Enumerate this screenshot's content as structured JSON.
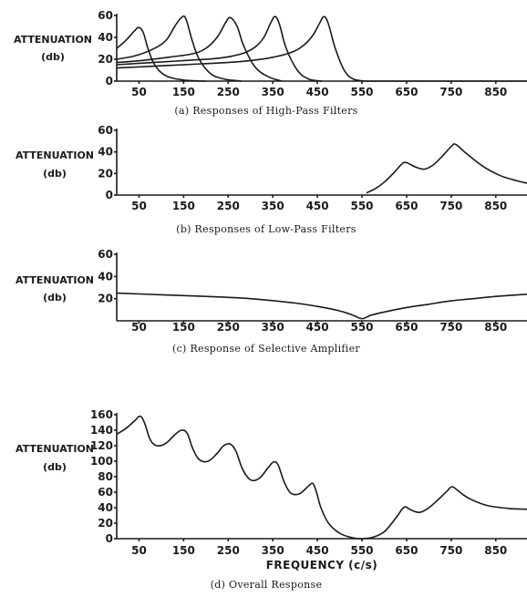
{
  "chart_data": [
    {
      "type": "line",
      "caption": "(a) Responses of High-Pass Filters",
      "ylabel": [
        "ATTENUATION",
        "(db)"
      ],
      "xticks": [
        50,
        150,
        250,
        350,
        450,
        550,
        650,
        750,
        850
      ],
      "xtick_labels": [
        "50",
        "150",
        "250",
        "350",
        "450",
        "550",
        "650",
        "750",
        "850"
      ],
      "yticks": [
        0,
        20,
        40,
        60
      ],
      "xlim": [
        0,
        920
      ],
      "ylim": [
        0,
        60
      ],
      "series": [
        {
          "x": [
            0,
            20,
            40,
            50,
            60,
            70,
            85,
            110,
            150,
            200
          ],
          "y": [
            30,
            37,
            46,
            49,
            44,
            30,
            15,
            5,
            1,
            0
          ]
        },
        {
          "x": [
            0,
            40,
            80,
            110,
            130,
            145,
            155,
            170,
            185,
            210,
            240,
            280
          ],
          "y": [
            20,
            23,
            29,
            37,
            50,
            58,
            57,
            36,
            20,
            7,
            2,
            0
          ]
        },
        {
          "x": [
            0,
            60,
            120,
            170,
            200,
            225,
            245,
            255,
            270,
            285,
            310,
            340,
            370
          ],
          "y": [
            17,
            19,
            22,
            25,
            30,
            40,
            54,
            58,
            50,
            32,
            13,
            4,
            0
          ]
        },
        {
          "x": [
            0,
            80,
            160,
            230,
            280,
            310,
            330,
            345,
            355,
            365,
            380,
            405,
            430,
            460
          ],
          "y": [
            15,
            17,
            19,
            21,
            25,
            31,
            40,
            53,
            59,
            52,
            30,
            10,
            2,
            0
          ]
        },
        {
          "x": [
            0,
            100,
            200,
            280,
            340,
            390,
            420,
            440,
            455,
            465,
            475,
            490,
            510,
            530,
            560
          ],
          "y": [
            12,
            14,
            16,
            18,
            21,
            26,
            33,
            42,
            53,
            59,
            52,
            30,
            10,
            2,
            0
          ]
        }
      ],
      "baseline": {
        "x": [
          560,
          920
        ],
        "y": [
          0,
          0
        ]
      }
    },
    {
      "type": "line",
      "caption": "(b) Responses of Low-Pass Filters",
      "ylabel": [
        "ATTENUATION",
        "(db)"
      ],
      "xticks": [
        50,
        150,
        250,
        350,
        450,
        550,
        650,
        750,
        850
      ],
      "xtick_labels": [
        "50",
        "150",
        "250",
        "350",
        "450",
        "550",
        "650",
        "750",
        "850"
      ],
      "yticks": [
        0,
        20,
        40,
        60
      ],
      "xlim": [
        0,
        920
      ],
      "ylim": [
        0,
        60
      ],
      "series": [
        {
          "x": [
            560,
            580,
            600,
            620,
            640,
            650,
            670,
            690,
            710,
            730,
            750,
            760,
            780,
            820,
            860,
            900,
            920
          ],
          "y": [
            2,
            6,
            12,
            20,
            29,
            30,
            26,
            24,
            28,
            36,
            45,
            47,
            40,
            27,
            18,
            13,
            11
          ]
        }
      ]
    },
    {
      "type": "line",
      "caption": "(c) Response of Selective Amplifier",
      "ylabel": [
        "ATTENUATION",
        "(db)"
      ],
      "xticks": [
        50,
        150,
        250,
        350,
        450,
        550,
        650,
        750,
        850
      ],
      "xtick_labels": [
        "50",
        "150",
        "250",
        "350",
        "450",
        "550",
        "650",
        "750",
        "850"
      ],
      "yticks": [
        20,
        40,
        60
      ],
      "xlim": [
        0,
        920
      ],
      "ylim": [
        0,
        60
      ],
      "series": [
        {
          "x": [
            0,
            100,
            200,
            300,
            400,
            450,
            500,
            530,
            550,
            570,
            600,
            650,
            700,
            750,
            800,
            850,
            920
          ],
          "y": [
            25,
            23.5,
            22,
            20,
            16,
            13,
            9,
            5,
            2,
            5,
            8,
            12,
            15,
            18,
            20,
            22,
            24
          ]
        }
      ]
    },
    {
      "type": "line",
      "caption": "(d) Overall Response",
      "xlabel": "FREQUENCY  (c/s)",
      "ylabel": [
        "ATTENUATION",
        "(db)"
      ],
      "xticks": [
        50,
        150,
        250,
        350,
        450,
        550,
        650,
        750,
        850
      ],
      "xtick_labels": [
        "50",
        "150",
        "250",
        "350",
        "450",
        "550",
        "650",
        "750",
        "850"
      ],
      "yticks": [
        0,
        20,
        40,
        60,
        80,
        100,
        120,
        140,
        160
      ],
      "xlim": [
        0,
        920
      ],
      "ylim": [
        0,
        165
      ],
      "series": [
        {
          "x": [
            0,
            20,
            40,
            52,
            62,
            75,
            90,
            110,
            130,
            145,
            158,
            170,
            185,
            205,
            225,
            240,
            255,
            268,
            282,
            300,
            320,
            340,
            352,
            362,
            375,
            390,
            410,
            430,
            440,
            448,
            458,
            475,
            500,
            530,
            552,
            575,
            600,
            625,
            640,
            648,
            660,
            680,
            700,
            720,
            740,
            752,
            765,
            790,
            830,
            880,
            920
          ],
          "y": [
            135,
            142,
            152,
            158,
            150,
            128,
            120,
            123,
            134,
            140,
            136,
            117,
            102,
            100,
            110,
            120,
            122,
            112,
            90,
            76,
            78,
            92,
            99,
            95,
            74,
            59,
            58,
            68,
            71,
            60,
            40,
            20,
            7,
            1,
            0,
            2,
            9,
            26,
            38,
            41,
            37,
            34,
            40,
            50,
            61,
            67,
            62,
            52,
            43,
            39,
            38
          ]
        }
      ]
    }
  ]
}
